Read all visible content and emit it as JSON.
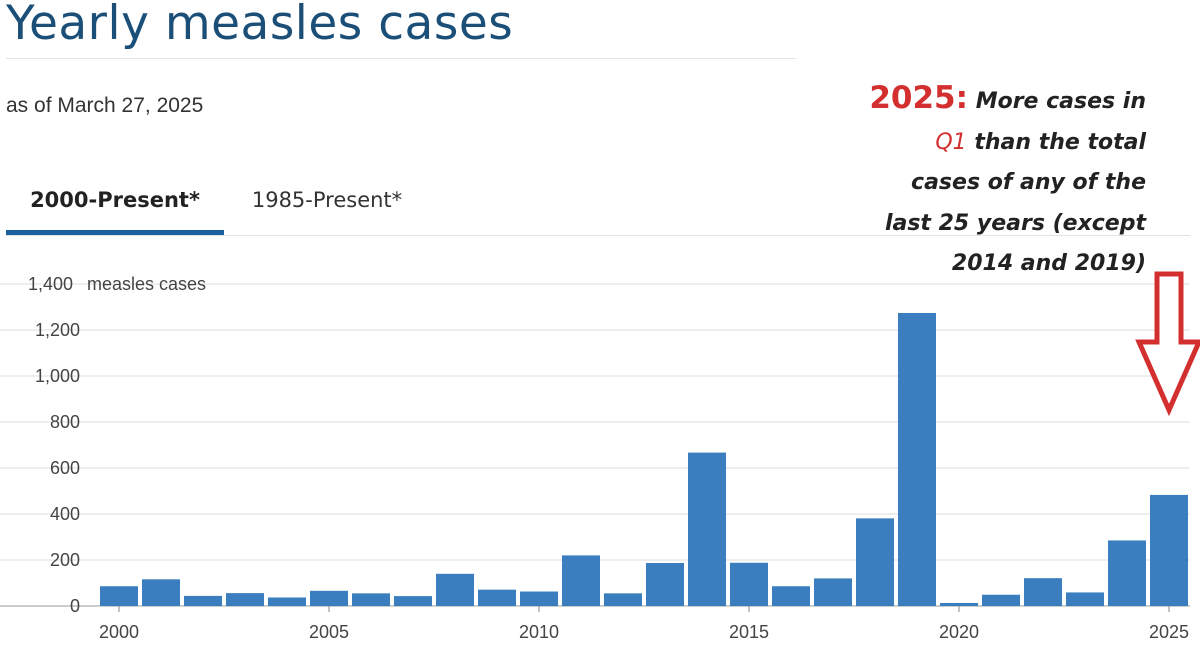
{
  "title": "Yearly measles cases",
  "as_of": "as of March 27, 2025",
  "tabs": [
    {
      "label": "2000-Present*",
      "active": true
    },
    {
      "label": "1985-Present*",
      "active": false
    }
  ],
  "annotation": {
    "year_label": "2025:",
    "text_line1": "More cases in",
    "q1_label": "Q1",
    "text_line2": "than the total",
    "text_line3": "cases of any of the",
    "text_line4": "last 25 years (except",
    "text_line5": "2014 and 2019)"
  },
  "colors": {
    "title": "#1b4f78",
    "bar": "#3a7ebf",
    "tab_underline": "#1c5f9e",
    "annotation_red": "#d32f2f",
    "grid": "#dddddd"
  },
  "chart_data": {
    "type": "bar",
    "ylabel_inline": "measles cases",
    "x": [
      2000,
      2001,
      2002,
      2003,
      2004,
      2005,
      2006,
      2007,
      2008,
      2009,
      2010,
      2011,
      2012,
      2013,
      2014,
      2015,
      2016,
      2017,
      2018,
      2019,
      2020,
      2021,
      2022,
      2023,
      2024,
      2025
    ],
    "values": [
      86,
      116,
      44,
      56,
      37,
      66,
      55,
      43,
      140,
      71,
      63,
      220,
      55,
      187,
      667,
      188,
      86,
      120,
      381,
      1274,
      13,
      49,
      121,
      59,
      285,
      483
    ],
    "ylim": [
      0,
      1400
    ],
    "yticks": [
      0,
      200,
      400,
      600,
      800,
      1000,
      1200,
      1400
    ],
    "ytick_labels": [
      "0",
      "200",
      "400",
      "600",
      "800",
      "1,000",
      "1,200",
      "1,400"
    ],
    "xticks": [
      2000,
      2005,
      2010,
      2015,
      2020,
      2025
    ],
    "xtick_labels": [
      "2000",
      "2005",
      "2010",
      "2015",
      "2020",
      "2025"
    ],
    "grid": true,
    "arrow_target": 2025
  }
}
